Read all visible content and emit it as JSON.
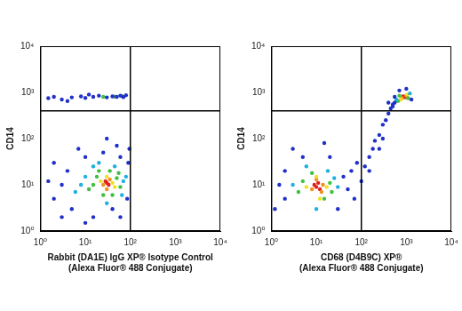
{
  "chart_data": [
    {
      "type": "scatter",
      "x_label": [
        "Rabbit (DA1E) IgG XP® Isotype Control",
        "(Alexa Fluor® 488 Conjugate)"
      ],
      "y_label": "CD14",
      "xlim": [
        1,
        10000
      ],
      "ylim": [
        1,
        10000
      ],
      "xticks": [
        {
          "value": 1,
          "label": "10⁰"
        },
        {
          "value": 10,
          "label": "10¹"
        },
        {
          "value": 100,
          "label": "10²"
        },
        {
          "value": 1000,
          "label": "10³"
        },
        {
          "value": 10000,
          "label": "10⁴"
        }
      ],
      "yticks": [
        {
          "value": 1,
          "label": "10⁰"
        },
        {
          "value": 10,
          "label": "10¹"
        },
        {
          "value": 100,
          "label": "10²"
        },
        {
          "value": 1000,
          "label": "10³"
        },
        {
          "value": 10000,
          "label": "10⁴"
        }
      ],
      "log": true,
      "grid": false,
      "quadrant_x": 100,
      "quadrant_y": 400,
      "series": [
        {
          "color": "#2030c8",
          "x": [
            3,
            2,
            4,
            5,
            10,
            25,
            60,
            90,
            85,
            40,
            15,
            1.5,
            2,
            7,
            50,
            30,
            95,
            10,
            60,
            3,
            1.5,
            2,
            3,
            5,
            8,
            10,
            15,
            20,
            30,
            40,
            50,
            60,
            70,
            80,
            4,
            12
          ],
          "values": [
            10,
            5,
            20,
            3,
            40,
            50,
            40,
            30,
            5,
            3,
            2,
            12,
            30,
            60,
            70,
            100,
            60,
            1.5,
            2,
            2,
            750,
            800,
            700,
            780,
            820,
            760,
            800,
            850,
            780,
            820,
            800,
            850,
            790,
            870,
            650,
            900
          ]
        },
        {
          "color": "#20b0e0",
          "x": [
            8,
            10,
            70,
            30,
            15,
            45,
            6,
            65,
            20,
            80
          ],
          "values": [
            10,
            15,
            12,
            4,
            25,
            25,
            7,
            6,
            30,
            15
          ]
        },
        {
          "color": "#40c040",
          "x": [
            15,
            18,
            50,
            60,
            25,
            35,
            12,
            40,
            20,
            55,
            25,
            45,
            65
          ],
          "values": [
            10,
            15,
            14,
            9,
            6,
            20,
            8,
            6,
            20,
            18,
            800,
            810,
            830
          ]
        },
        {
          "color": "#f0e020",
          "x": [
            40,
            22,
            30,
            45
          ],
          "values": [
            11,
            12,
            15,
            9
          ]
        },
        {
          "color": "#f09020",
          "x": [
            25,
            35,
            30
          ],
          "values": [
            10,
            13,
            8
          ]
        },
        {
          "color": "#e02020",
          "x": [
            30,
            28,
            33
          ],
          "values": [
            11,
            12,
            10
          ]
        }
      ]
    },
    {
      "type": "scatter",
      "x_label": [
        "CD68 (D4B9C) XP®",
        "(Alexa Fluor® 488 Conjugate)"
      ],
      "y_label": "CD14",
      "xlim": [
        1,
        10000
      ],
      "ylim": [
        1,
        10000
      ],
      "xticks": [
        {
          "value": 1,
          "label": "10⁰"
        },
        {
          "value": 10,
          "label": "10¹"
        },
        {
          "value": 100,
          "label": "10²"
        },
        {
          "value": 1000,
          "label": "10³"
        },
        {
          "value": 10000,
          "label": "10⁴"
        }
      ],
      "yticks": [
        {
          "value": 1,
          "label": "10⁰"
        },
        {
          "value": 10,
          "label": "10¹"
        },
        {
          "value": 100,
          "label": "10²"
        },
        {
          "value": 1000,
          "label": "10³"
        },
        {
          "value": 10000,
          "label": "10⁴"
        }
      ],
      "log": true,
      "grid": false,
      "quadrant_x": 100,
      "quadrant_y": 400,
      "series": [
        {
          "color": "#2030c8",
          "x": [
            2,
            1.5,
            2,
            40,
            50,
            60,
            80,
            100,
            5,
            20,
            30,
            1.2,
            70,
            3,
            15,
            120,
            150,
            180,
            200,
            250,
            300,
            350,
            400,
            450,
            500,
            550,
            300,
            150,
            250,
            550,
            1300,
            700,
            500,
            1000,
            400
          ],
          "values": [
            5,
            10,
            20,
            15,
            8,
            20,
            30,
            12,
            40,
            40,
            3,
            3,
            5,
            60,
            80,
            25,
            40,
            60,
            90,
            120,
            200,
            250,
            350,
            450,
            500,
            600,
            100,
            20,
            60,
            800,
            700,
            1100,
            550,
            1200,
            600
          ]
        },
        {
          "color": "#20b0e0",
          "x": [
            3,
            25,
            6,
            18,
            30,
            10,
            600,
            1200
          ],
          "values": [
            10,
            14,
            25,
            20,
            9,
            3,
            700,
            950
          ]
        },
        {
          "color": "#40c040",
          "x": [
            5,
            20,
            8,
            15,
            4,
            22,
            700,
            1100,
            650
          ],
          "values": [
            12,
            11,
            18,
            5,
            7,
            7,
            850,
            750,
            650
          ]
        },
        {
          "color": "#f0e020",
          "x": [
            6,
            17,
            10,
            12,
            750,
            1050
          ],
          "values": [
            9,
            9,
            15,
            5,
            700,
            900
          ]
        },
        {
          "color": "#f09020",
          "x": [
            8,
            14,
            10,
            13,
            800,
            1000
          ],
          "values": [
            8,
            10,
            13,
            7,
            750,
            850
          ]
        },
        {
          "color": "#e02020",
          "x": [
            10,
            12,
            9,
            11,
            900,
            850,
            950
          ],
          "values": [
            9,
            8,
            10,
            11,
            800,
            820,
            780
          ]
        }
      ]
    }
  ]
}
